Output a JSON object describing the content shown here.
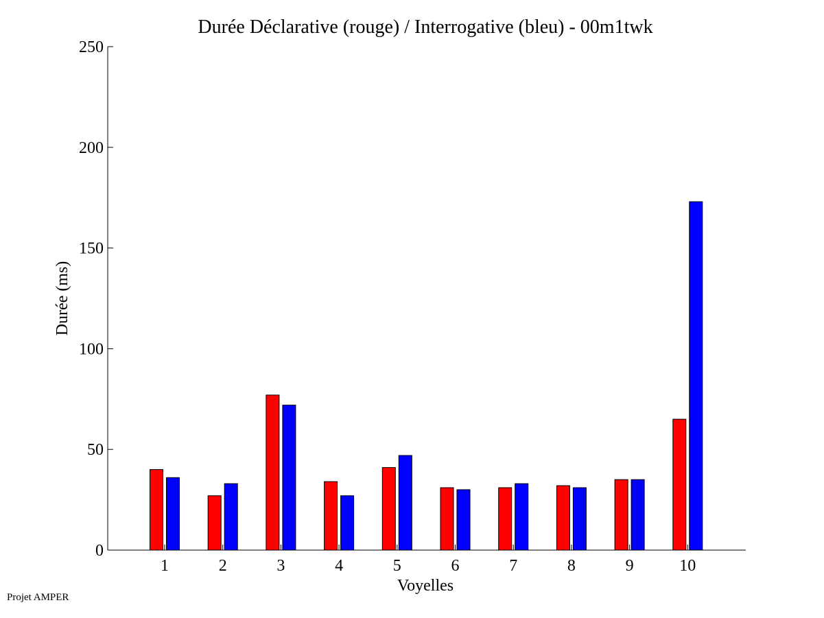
{
  "footer": "Projet AMPER",
  "chart_data": {
    "type": "bar",
    "title": "Durée Déclarative (rouge) / Interrogative (bleu) - 00m1twk",
    "xlabel": "Voyelles",
    "ylabel": "Durée (ms)",
    "categories": [
      "1",
      "2",
      "3",
      "4",
      "5",
      "6",
      "7",
      "8",
      "9",
      "10"
    ],
    "ylim": [
      0,
      250
    ],
    "yticks": [
      0,
      50,
      100,
      150,
      200,
      250
    ],
    "grid": false,
    "legend": "none",
    "series": [
      {
        "color": "#ff0000",
        "values": [
          40,
          27,
          77,
          34,
          41,
          31,
          31,
          32,
          35,
          65
        ]
      },
      {
        "color": "#0000ff",
        "values": [
          36,
          33,
          72,
          27,
          47,
          30,
          33,
          31,
          35,
          173
        ]
      }
    ]
  }
}
